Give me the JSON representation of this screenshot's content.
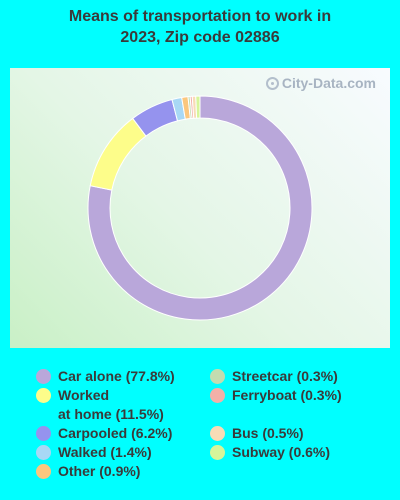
{
  "title_line1": "Means of transportation to work in",
  "title_line2": "2023, Zip code 02886",
  "watermark": "City-Data.com",
  "watermark_icon": "magnifier-icon",
  "chart_data": {
    "type": "pie",
    "variant": "donut",
    "title": "Means of transportation to work in 2023, Zip code 02886",
    "slices": [
      {
        "label": "Car alone (77.8%)",
        "value": 77.8,
        "color": "#b9a7da"
      },
      {
        "label": "Worked\nat home (11.5%)",
        "value": 11.5,
        "color": "#fdfd8a"
      },
      {
        "label": "Carpooled (6.2%)",
        "value": 6.2,
        "color": "#9593ee"
      },
      {
        "label": "Walked (1.4%)",
        "value": 1.4,
        "color": "#a8d8f5"
      },
      {
        "label": "Other (0.9%)",
        "value": 0.9,
        "color": "#fbc77e"
      },
      {
        "label": "Streetcar (0.3%)",
        "value": 0.3,
        "color": "#c3dcb0"
      },
      {
        "label": "Ferryboat (0.3%)",
        "value": 0.3,
        "color": "#f3b0a8"
      },
      {
        "label": "Bus (0.5%)",
        "value": 0.5,
        "color": "#f8dcb6"
      },
      {
        "label": "Subway (0.6%)",
        "value": 0.6,
        "color": "#d6f59a"
      }
    ],
    "legend_placement": "bottom"
  }
}
